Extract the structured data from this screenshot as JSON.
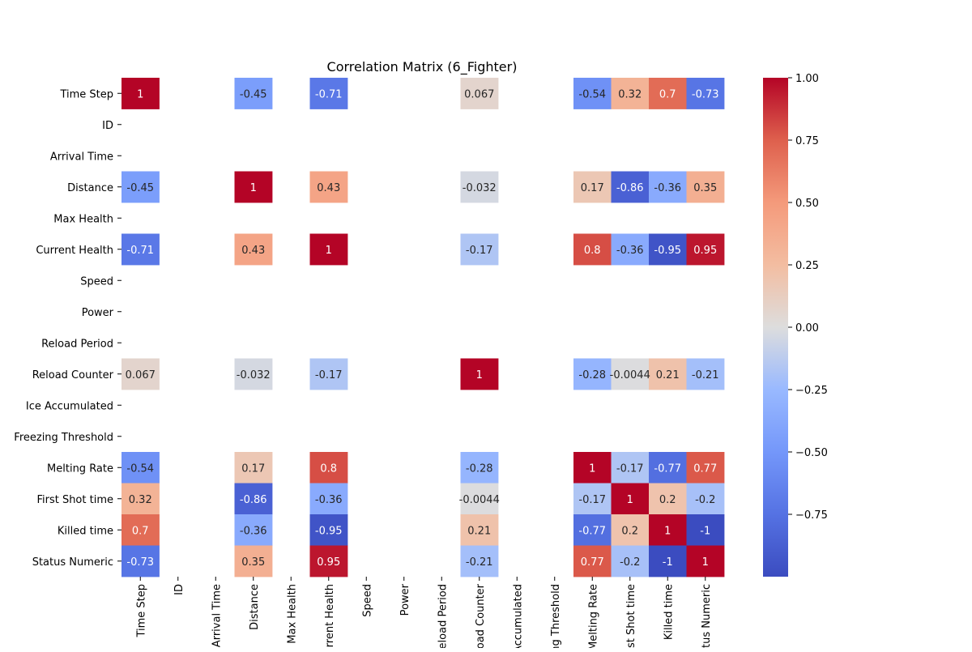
{
  "chart_data": {
    "type": "heatmap",
    "title": "Correlation Matrix (6_Fighter)",
    "xlabel": "",
    "ylabel": "",
    "rows": [
      "Time Step",
      "ID",
      "Arrival Time",
      "Distance",
      "Max Health",
      "Current Health",
      "Speed",
      "Power",
      "Reload Period",
      "Reload Counter",
      "Ice Accumulated",
      "Freezing Threshold",
      "Melting Rate",
      "First Shot time",
      "Killed time",
      "Status Numeric"
    ],
    "columns": [
      "Time Step",
      "ID",
      "Arrival Time",
      "Distance",
      "Max Health",
      "Current Health",
      "Speed",
      "Power",
      "Reload Period",
      "Reload Counter",
      "Ice Accumulated",
      "Freezing Threshold",
      "Melting Rate",
      "First Shot time",
      "Killed time",
      "Status Numeric"
    ],
    "values": [
      [
        1,
        null,
        null,
        -0.45,
        null,
        -0.71,
        null,
        null,
        null,
        0.067,
        null,
        null,
        -0.54,
        0.32,
        0.7,
        -0.73
      ],
      [
        null,
        null,
        null,
        null,
        null,
        null,
        null,
        null,
        null,
        null,
        null,
        null,
        null,
        null,
        null,
        null
      ],
      [
        null,
        null,
        null,
        null,
        null,
        null,
        null,
        null,
        null,
        null,
        null,
        null,
        null,
        null,
        null,
        null
      ],
      [
        -0.45,
        null,
        null,
        1,
        null,
        0.43,
        null,
        null,
        null,
        -0.032,
        null,
        null,
        0.17,
        -0.86,
        -0.36,
        0.35
      ],
      [
        null,
        null,
        null,
        null,
        null,
        null,
        null,
        null,
        null,
        null,
        null,
        null,
        null,
        null,
        null,
        null
      ],
      [
        -0.71,
        null,
        null,
        0.43,
        null,
        1,
        null,
        null,
        null,
        -0.17,
        null,
        null,
        0.8,
        -0.36,
        -0.95,
        0.95
      ],
      [
        null,
        null,
        null,
        null,
        null,
        null,
        null,
        null,
        null,
        null,
        null,
        null,
        null,
        null,
        null,
        null
      ],
      [
        null,
        null,
        null,
        null,
        null,
        null,
        null,
        null,
        null,
        null,
        null,
        null,
        null,
        null,
        null,
        null
      ],
      [
        null,
        null,
        null,
        null,
        null,
        null,
        null,
        null,
        null,
        null,
        null,
        null,
        null,
        null,
        null,
        null
      ],
      [
        0.067,
        null,
        null,
        -0.032,
        null,
        -0.17,
        null,
        null,
        null,
        1,
        null,
        null,
        -0.28,
        -0.0044,
        0.21,
        -0.21
      ],
      [
        null,
        null,
        null,
        null,
        null,
        null,
        null,
        null,
        null,
        null,
        null,
        null,
        null,
        null,
        null,
        null
      ],
      [
        null,
        null,
        null,
        null,
        null,
        null,
        null,
        null,
        null,
        null,
        null,
        null,
        null,
        null,
        null,
        null
      ],
      [
        -0.54,
        null,
        null,
        0.17,
        null,
        0.8,
        null,
        null,
        null,
        -0.28,
        null,
        null,
        1,
        -0.17,
        -0.77,
        0.77
      ],
      [
        0.32,
        null,
        null,
        -0.86,
        null,
        -0.36,
        null,
        null,
        null,
        -0.0044,
        null,
        null,
        -0.17,
        1,
        0.2,
        -0.2
      ],
      [
        0.7,
        null,
        null,
        -0.36,
        null,
        -0.95,
        null,
        null,
        null,
        0.21,
        null,
        null,
        -0.77,
        0.2,
        1,
        -1
      ],
      [
        -0.73,
        null,
        null,
        0.35,
        null,
        0.95,
        null,
        null,
        null,
        -0.21,
        null,
        null,
        0.77,
        -0.2,
        -1,
        1
      ]
    ],
    "colormap": "coolwarm",
    "colorbar": {
      "vmin": -1,
      "vmax": 1,
      "ticks": [
        1.0,
        0.75,
        0.5,
        0.25,
        0.0,
        -0.25,
        -0.5,
        -0.75
      ],
      "tick_labels": [
        "1.00",
        "0.75",
        "0.50",
        "0.25",
        "0.00",
        "−0.25",
        "−0.50",
        "−0.75"
      ]
    },
    "annotations": true,
    "legend": "colorbar-right",
    "grid": false
  },
  "colors": {
    "dark_text": "#262626",
    "light_text": "#ffffff",
    "background": "#ffffff"
  }
}
